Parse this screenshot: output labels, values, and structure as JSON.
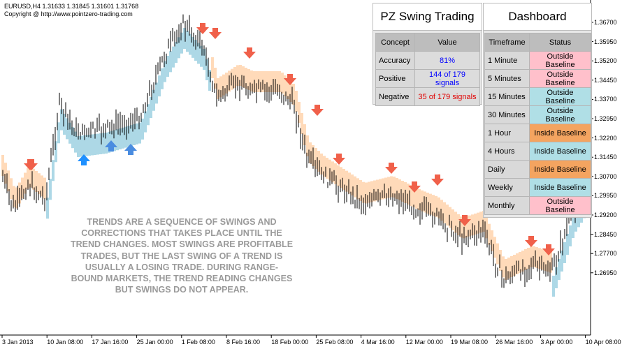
{
  "header": {
    "symbol_line": "EURUSD,H4  1.31633 1.31845 1.31601 1.31768",
    "copyright": "Copyright @ http://www.pointzero-trading.com"
  },
  "note": "TRENDS ARE A SEQUENCE OF SWINGS AND CORRECTIONS THAT TAKES PLACE UNTIL THE TREND CHANGES. MOST SWINGS ARE PROFITABLE TRADES, BUT THE LAST SWING OF A TREND IS USUALLY A LOSING TRADE. DURING RANGE-BOUND MARKETS, THE TREND READING CHANGES BUT SWINGS DO NOT APPEAR.",
  "swing_panel": {
    "title": "PZ Swing Trading",
    "col_concept": "Concept",
    "col_value": "Value",
    "rows": [
      {
        "concept": "Accuracy",
        "value": "81%",
        "color": "#0000ff",
        "bg": "#dcdcdc"
      },
      {
        "concept": "Positive",
        "value": "144 of 179 signals",
        "color": "#0000ff",
        "bg": "#dcdcdc"
      },
      {
        "concept": "Negative",
        "value": "35 of 179 signals",
        "color": "#e00000",
        "bg": "#dcdcdc"
      }
    ]
  },
  "dashboard": {
    "title": "Dashboard",
    "col_timeframe": "Timeframe",
    "col_status": "Status",
    "rows": [
      {
        "timeframe": "1 Minute",
        "status": "Outside Baseline",
        "bg": "#ffc0cb"
      },
      {
        "timeframe": "5 Minutes",
        "status": "Outside Baseline",
        "bg": "#ffc0cb"
      },
      {
        "timeframe": "15 Minutes",
        "status": "Outside Baseline",
        "bg": "#b0dfe6"
      },
      {
        "timeframe": "30 Minutes",
        "status": "Outside Baseline",
        "bg": "#b0dfe6"
      },
      {
        "timeframe": "1 Hour",
        "status": "Inside Baseline",
        "bg": "#f4a460"
      },
      {
        "timeframe": "4 Hours",
        "status": "Inside Baseline",
        "bg": "#b0dfe6"
      },
      {
        "timeframe": "Daily",
        "status": "Inside Baseline",
        "bg": "#f4a460"
      },
      {
        "timeframe": "Weekly",
        "status": "Inside Baseline",
        "bg": "#b0dfe6"
      },
      {
        "timeframe": "Monthly",
        "status": "Outside Baseline",
        "bg": "#ffc0cb"
      }
    ]
  },
  "chart_data": {
    "type": "candlestick",
    "price_axis": [
      "1.36700",
      "1.35950",
      "1.35200",
      "1.34450",
      "1.33700",
      "1.32950",
      "1.32200",
      "1.31450",
      "1.30700",
      "1.29950",
      "1.29200",
      "1.28450",
      "1.27700",
      "1.26950"
    ],
    "time_axis": [
      "3 Jan 2013",
      "10 Jan 08:00",
      "17 Jan 16:00",
      "25 Jan 00:00",
      "1 Feb 08:00",
      "8 Feb 16:00",
      "18 Feb 00:00",
      "25 Feb 08:00",
      "4 Mar 16:00",
      "12 Mar 00:00",
      "19 Mar 08:00",
      "26 Mar 16:00",
      "3 Apr 00:00",
      "10 Apr 08:00"
    ],
    "colors": {
      "up_band": "#add8e6",
      "down_band": "#ffdab9",
      "sell_arrow": "#f0604a",
      "buy_arrow": "#1e90ff",
      "buy_arrow_alt": "#4a8ce0"
    },
    "sell_signal_count": 15,
    "buy_signal_count": 3
  }
}
